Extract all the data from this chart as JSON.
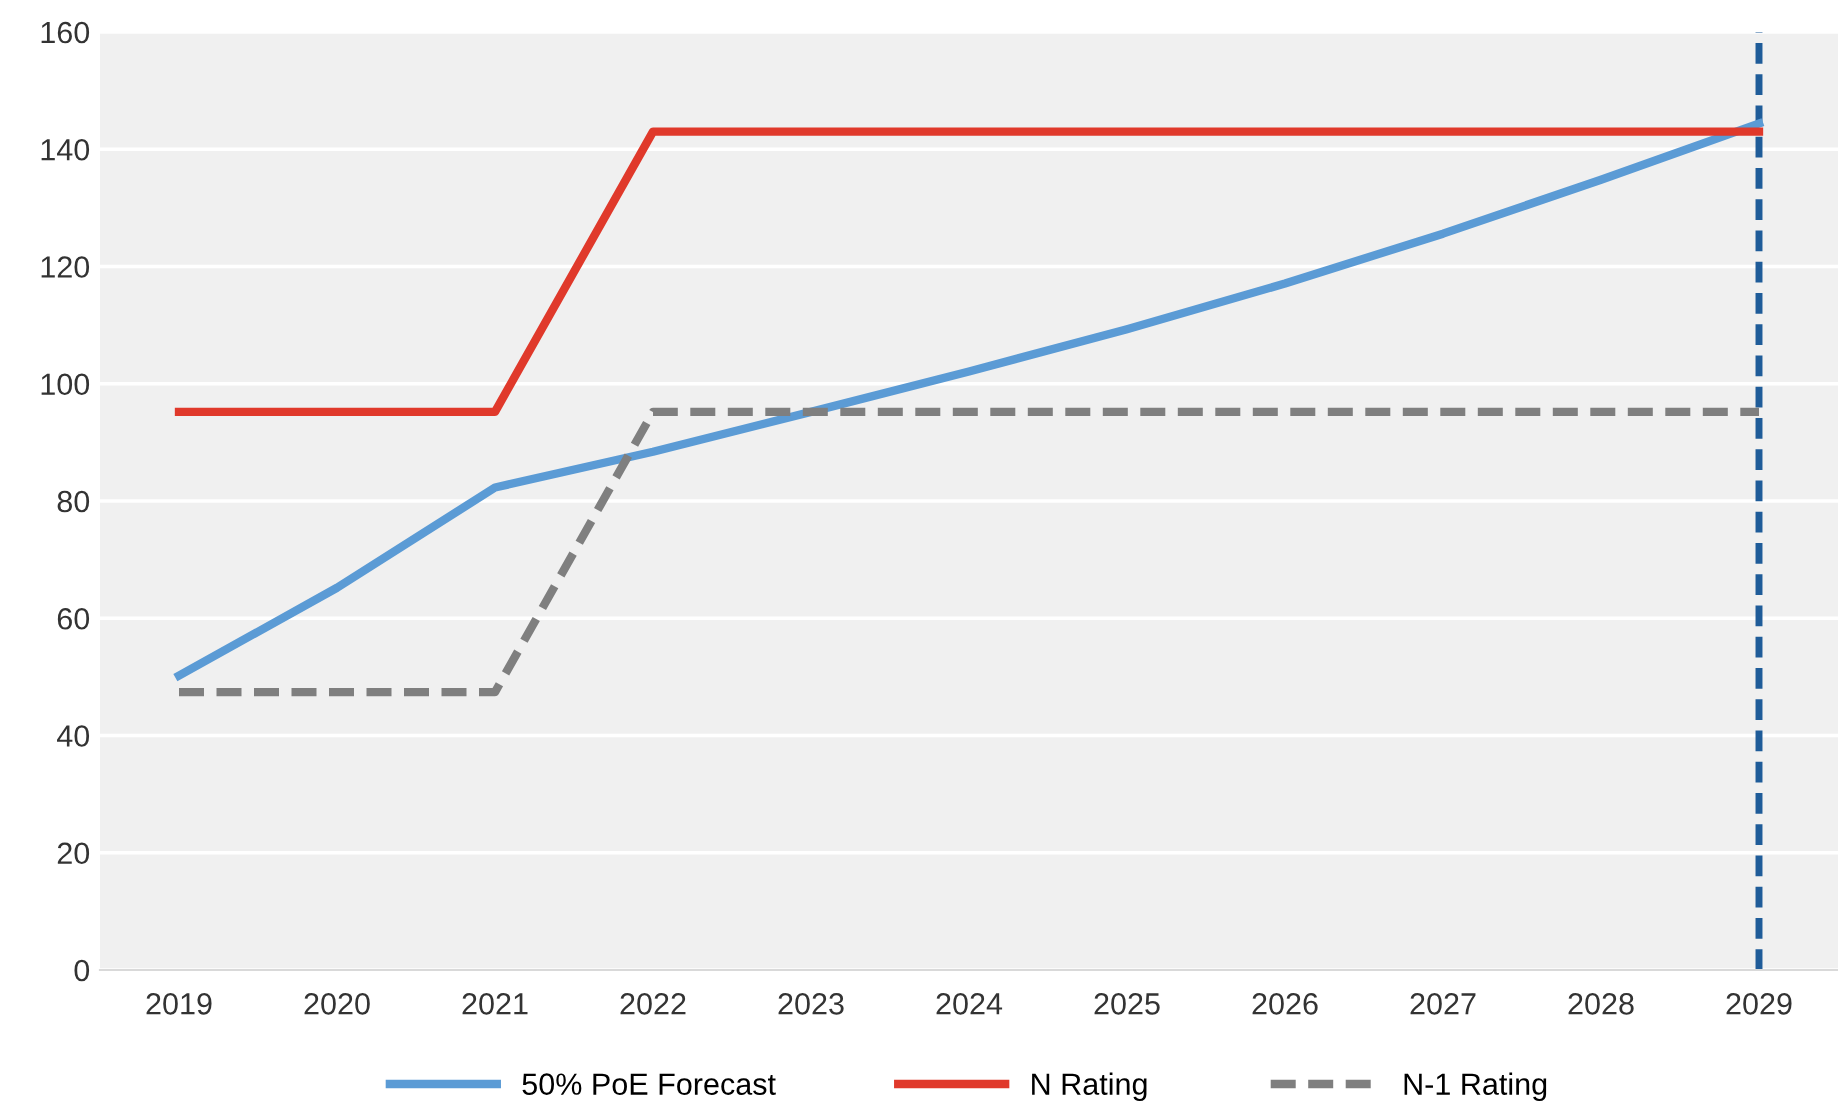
{
  "chart_data": {
    "type": "line",
    "categories": [
      "2019",
      "2020",
      "2021",
      "2022",
      "2023",
      "2024",
      "2025",
      "2026",
      "2027",
      "2028",
      "2029"
    ],
    "series": [
      {
        "name": "50% PoE Forecast",
        "color": "#5b9bd5",
        "values": [
          50.2,
          65.2,
          82.3,
          88.4,
          95.2,
          102.1,
          109.3,
          117.1,
          125.6,
          134.8,
          144.4
        ]
      },
      {
        "name": "N Rating",
        "color": "#e0392b",
        "values": [
          95.2,
          95.2,
          95.2,
          143,
          143,
          143,
          143,
          143,
          143,
          143,
          143
        ]
      },
      {
        "name": "N-1 Rating",
        "color": "#7f7f7f",
        "line_style": "dashed",
        "values": [
          47.4,
          47.4,
          47.4,
          95.2,
          95.2,
          95.2,
          95.2,
          95.2,
          95.2,
          95.2,
          95.2
        ]
      }
    ],
    "ylim": [
      0,
      160
    ],
    "yticks": [
      0,
      20,
      40,
      60,
      80,
      100,
      120,
      140,
      160
    ],
    "grid": "y",
    "legend": "bottom",
    "marker": "none",
    "ref_lines": [
      {
        "axis": "x",
        "value": "2029",
        "color": "#1f5c99",
        "line_style": "dashed"
      }
    ]
  }
}
